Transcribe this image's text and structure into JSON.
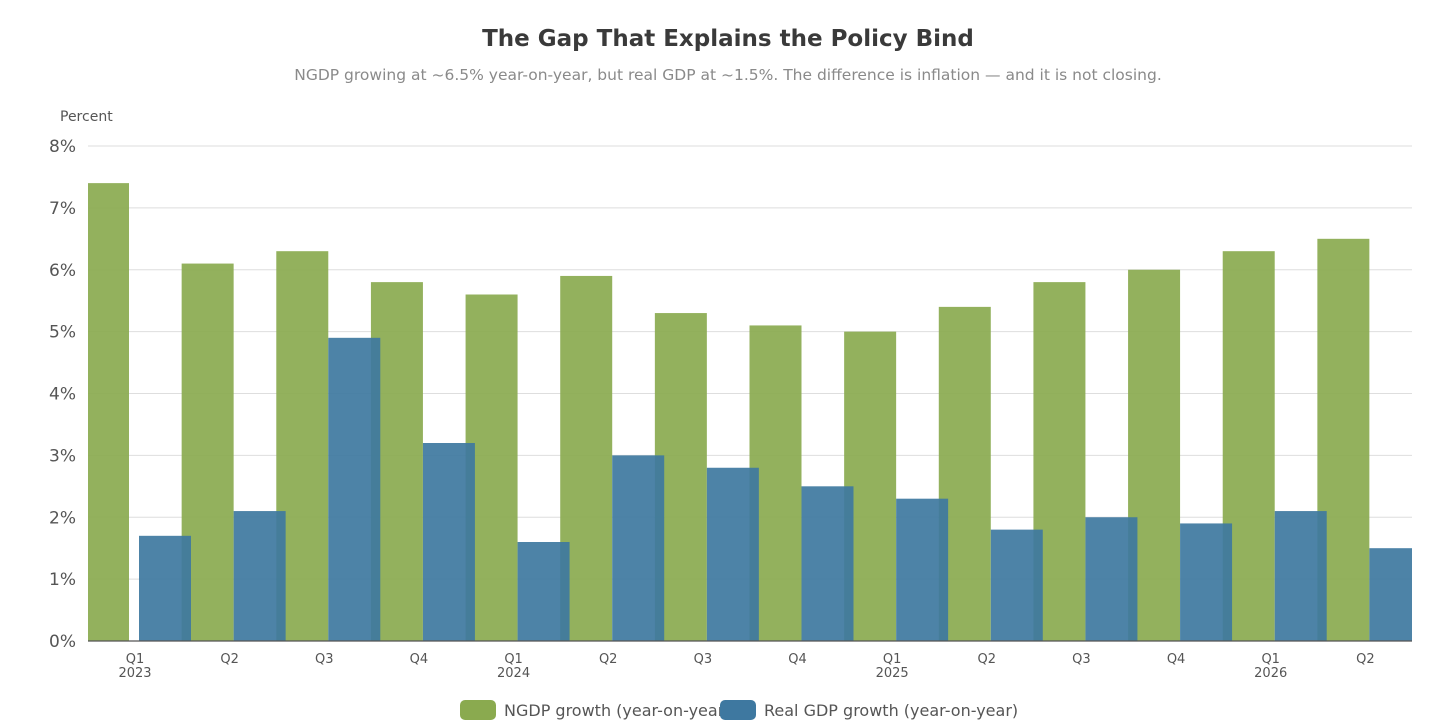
{
  "header": {
    "title": "The Gap That Explains the Policy Bind",
    "subtitle": "NGDP growing at ~6.5% year-on-year, but real GDP at ~1.5%. The difference is inflation — and it is not closing."
  },
  "chart_data": {
    "type": "bar",
    "y_axis_caption": "Percent",
    "ylim": [
      0,
      8
    ],
    "y_ticks": [
      "0%",
      "1%",
      "2%",
      "3%",
      "4%",
      "5%",
      "6%",
      "7%",
      "8%"
    ],
    "grid": "horizontal",
    "legend_position": "bottom",
    "categories": [
      {
        "quarter": "Q1",
        "year": "2023"
      },
      {
        "quarter": "Q2",
        "year": ""
      },
      {
        "quarter": "Q3",
        "year": ""
      },
      {
        "quarter": "Q4",
        "year": ""
      },
      {
        "quarter": "Q1",
        "year": "2024"
      },
      {
        "quarter": "Q2",
        "year": ""
      },
      {
        "quarter": "Q3",
        "year": ""
      },
      {
        "quarter": "Q4",
        "year": ""
      },
      {
        "quarter": "Q1",
        "year": "2025"
      },
      {
        "quarter": "Q2",
        "year": ""
      },
      {
        "quarter": "Q3",
        "year": ""
      },
      {
        "quarter": "Q4",
        "year": ""
      },
      {
        "quarter": "Q1",
        "year": "2026"
      },
      {
        "quarter": "Q2",
        "year": ""
      }
    ],
    "series": [
      {
        "name": "NGDP growth (year-on-year)",
        "color": "#8aaa4f",
        "values": [
          7.4,
          6.1,
          6.3,
          5.8,
          5.6,
          5.9,
          5.3,
          5.1,
          5.0,
          5.4,
          5.8,
          6.0,
          6.3,
          6.5
        ]
      },
      {
        "name": "Real GDP growth (year-on-year)",
        "color": "#3e78a0",
        "values": [
          1.7,
          2.1,
          4.9,
          3.2,
          1.6,
          3.0,
          2.8,
          2.5,
          2.3,
          1.8,
          2.0,
          1.9,
          2.1,
          1.5
        ]
      }
    ]
  }
}
